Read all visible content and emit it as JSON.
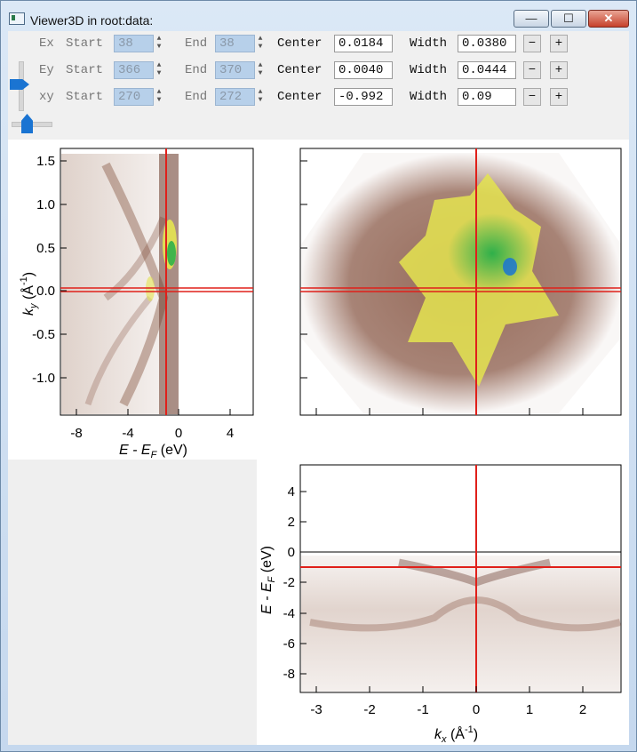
{
  "window": {
    "title": "Viewer3D in root:data:",
    "min_glyph": "—",
    "max_glyph": "☐",
    "close_glyph": "✕"
  },
  "controls": [
    {
      "axis": "Ex",
      "start_label": "Start",
      "start": "38",
      "end_label": "End",
      "end": "38",
      "center_label": "Center",
      "center": "0.0184",
      "width_label": "Width",
      "width": "0.0380",
      "minus": "−",
      "plus": "+"
    },
    {
      "axis": "Ey",
      "start_label": "Start",
      "start": "366",
      "end_label": "End",
      "end": "370",
      "center_label": "Center",
      "center": "0.0040",
      "width_label": "Width",
      "width": "0.0444",
      "minus": "−",
      "plus": "+"
    },
    {
      "axis": "xy",
      "start_label": "Start",
      "start": "270",
      "end_label": "End",
      "end": "272",
      "center_label": "Center",
      "center": "-0.992",
      "width_label": "Width",
      "width": "0.09",
      "minus": "−",
      "plus": "+"
    }
  ],
  "colors": {
    "cursor": "#e0201a",
    "brown": "#7a4a3a",
    "green": "#2fb04a",
    "yellow": "#e4e450",
    "blue": "#1a74d2"
  },
  "plots": {
    "left": {
      "xlabel_main": "E - E",
      "xlabel_sub": "F",
      "xlabel_unit": " (eV)",
      "ylabel_main": "k",
      "ylabel_sub": "y",
      "ylabel_unit": " (Å",
      "ylabel_sup": "-1",
      "ylabel_close": ")",
      "xticks": [
        "-8",
        "-4",
        "0",
        "4"
      ],
      "yticks": [
        "1.5",
        "1.0",
        "0.5",
        "0.0",
        "-0.5",
        "-1.0"
      ]
    },
    "bottom": {
      "xlabel_main": "k",
      "xlabel_sub": "x",
      "xlabel_unit": " (Å",
      "xlabel_sup": "-1",
      "xlabel_close": ")",
      "ylabel_main": "E - E",
      "ylabel_sub": "F",
      "ylabel_unit": " (eV)",
      "xticks": [
        "-3",
        "-2",
        "-1",
        "0",
        "1",
        "2"
      ],
      "yticks": [
        "4",
        "2",
        "0",
        "-2",
        "-4",
        "-6",
        "-8"
      ]
    }
  }
}
